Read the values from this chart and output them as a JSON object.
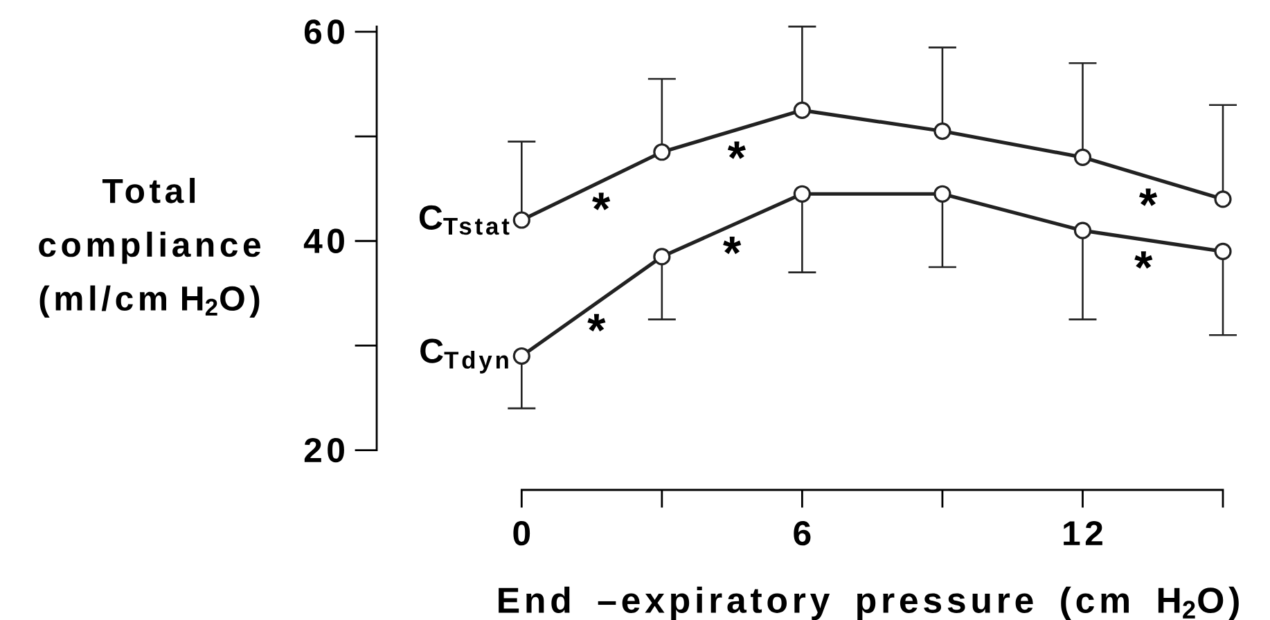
{
  "chart_data": {
    "type": "line",
    "xlabel": "End –expiratory pressure (cm H$_{2}$O)",
    "ylabel": "Total compliance (ml/cm H$_{2}$O)",
    "x": [
      0,
      3,
      6,
      9,
      12,
      15
    ],
    "series": [
      {
        "name": "C$_{Tstat}$",
        "color": "#222222",
        "values": [
          42,
          48.5,
          52.5,
          50.5,
          48,
          44
        ],
        "errors": [
          [
            42,
            49.5
          ],
          [
            48.5,
            55.5
          ],
          [
            52.5,
            60.5
          ],
          [
            50.5,
            58.5
          ],
          [
            48,
            57
          ],
          [
            44,
            53
          ]
        ]
      },
      {
        "name": "C$_{Tdyn}$",
        "color": "#222222",
        "values": [
          29,
          38.5,
          44.5,
          44.5,
          41,
          39
        ],
        "errors": [
          [
            24,
            29
          ],
          [
            32.5,
            38.5
          ],
          [
            37,
            44.5
          ],
          [
            37.5,
            44.5
          ],
          [
            32.5,
            41
          ],
          [
            31,
            39
          ]
        ]
      }
    ],
    "xlim": [
      -3.1,
      15
    ],
    "ylim": [
      16.2,
      60.5
    ],
    "xticks": [
      0,
      {
        "value": 3,
        "label": null
      },
      6,
      {
        "value": 9,
        "label": null
      },
      12,
      {
        "value": 15,
        "label": null
      }
    ],
    "yticks": [
      20,
      {
        "value": 30,
        "label": null
      },
      40,
      {
        "value": 50,
        "label": null
      },
      60
    ],
    "marker": "circle",
    "line_style": "solid",
    "annotations": [
      {
        "text": "*",
        "x": 1.7,
        "y": 45.7
      },
      {
        "text": "*",
        "x": 4.6,
        "y": 50.6
      },
      {
        "text": "*",
        "x": 13.4,
        "y": 46.1
      },
      {
        "text": "*",
        "x": 1.6,
        "y": 34.1
      },
      {
        "text": "*",
        "x": 4.5,
        "y": 41.5
      },
      {
        "text": "*",
        "x": 13.3,
        "y": 40.1
      }
    ]
  }
}
